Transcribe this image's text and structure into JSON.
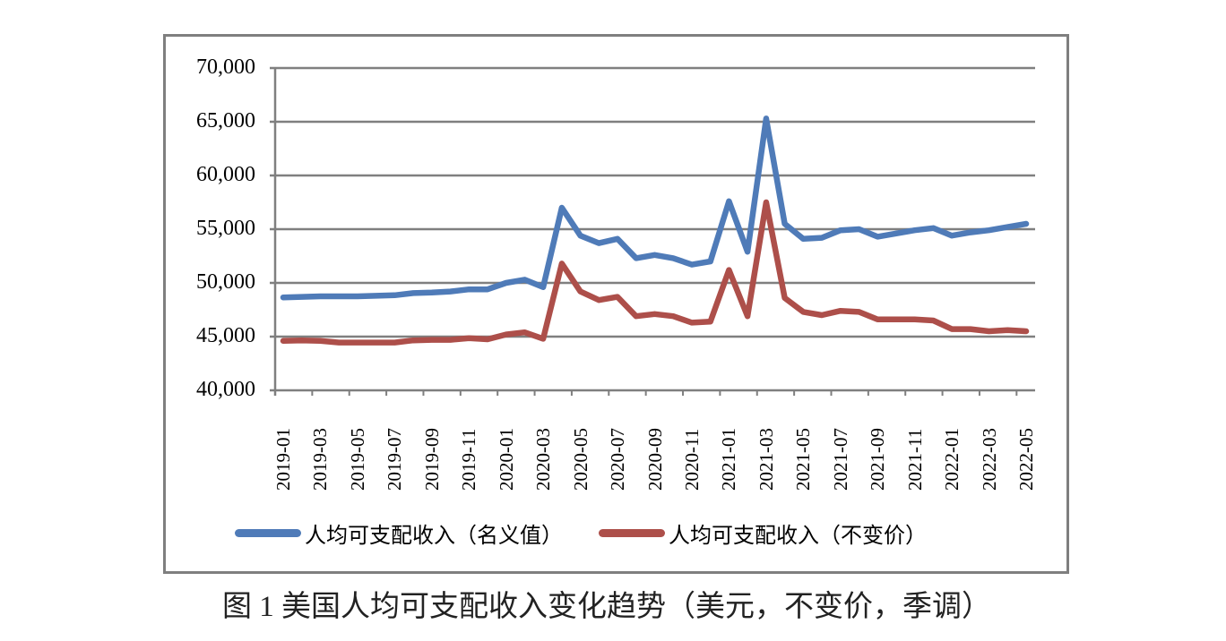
{
  "chart_data": {
    "type": "line",
    "title": "图1 美国人均可支配收入变化趋势（美元，不变价，季调）",
    "xlabel": "",
    "ylabel": "",
    "ylim": [
      40000,
      70000
    ],
    "yticks": [
      "70,000",
      "65,000",
      "60,000",
      "55,000",
      "50,000",
      "45,000",
      "40,000"
    ],
    "ytick_values": [
      70000,
      65000,
      60000,
      55000,
      50000,
      45000,
      40000
    ],
    "grid": true,
    "legend_position": "bottom",
    "xtick_labels": [
      "2019-01",
      "2019-03",
      "2019-05",
      "2019-07",
      "2019-09",
      "2019-11",
      "2020-01",
      "2020-03",
      "2020-05",
      "2020-07",
      "2020-09",
      "2020-11",
      "2021-01",
      "2021-03",
      "2021-05",
      "2021-07",
      "2021-09",
      "2021-11",
      "2022-01",
      "2022-03",
      "2022-05"
    ],
    "x": [
      "2019-01",
      "2019-02",
      "2019-03",
      "2019-04",
      "2019-05",
      "2019-06",
      "2019-07",
      "2019-08",
      "2019-09",
      "2019-10",
      "2019-11",
      "2019-12",
      "2020-01",
      "2020-02",
      "2020-03",
      "2020-04",
      "2020-05",
      "2020-06",
      "2020-07",
      "2020-08",
      "2020-09",
      "2020-10",
      "2020-11",
      "2020-12",
      "2021-01",
      "2021-02",
      "2021-03",
      "2021-04",
      "2021-05",
      "2021-06",
      "2021-07",
      "2021-08",
      "2021-09",
      "2021-10",
      "2021-11",
      "2021-12",
      "2022-01",
      "2022-02",
      "2022-03",
      "2022-04",
      "2022-05"
    ],
    "series": [
      {
        "name": "人均可支配收入（名义值）",
        "color": "#4f7bb8",
        "values": [
          48650,
          48700,
          48750,
          48750,
          48750,
          48800,
          48850,
          49050,
          49100,
          49200,
          49400,
          49400,
          50000,
          50300,
          49600,
          57000,
          54400,
          53700,
          54100,
          52300,
          52600,
          52300,
          51700,
          52000,
          57600,
          52900,
          65300,
          55500,
          54100,
          54200,
          54900,
          55000,
          54300,
          54600,
          54900,
          55100,
          54400,
          54700,
          54900,
          55200,
          55500
        ]
      },
      {
        "name": "人均可支配收入（不变价）",
        "color": "#ad4f4a",
        "values": [
          44600,
          44650,
          44600,
          44450,
          44450,
          44450,
          44450,
          44650,
          44700,
          44700,
          44850,
          44750,
          45200,
          45400,
          44800,
          51800,
          49200,
          48400,
          48700,
          46900,
          47100,
          46900,
          46300,
          46400,
          51200,
          46900,
          57500,
          48600,
          47300,
          47000,
          47400,
          47300,
          46600,
          46600,
          46600,
          46500,
          45700,
          45700,
          45500,
          45600,
          45500
        ]
      }
    ]
  },
  "legend": {
    "items": [
      {
        "label": "人均可支配收入（名义值）",
        "color": "#4f7bb8"
      },
      {
        "label": "人均可支配收入（不变价）",
        "color": "#ad4f4a"
      }
    ]
  },
  "caption": "图 1  美国人均可支配收入变化趋势（美元，不变价，季调）",
  "colors": {
    "frame": "#7f7f7f",
    "grid": "#7f7f7f",
    "axis": "#7f7f7f"
  }
}
